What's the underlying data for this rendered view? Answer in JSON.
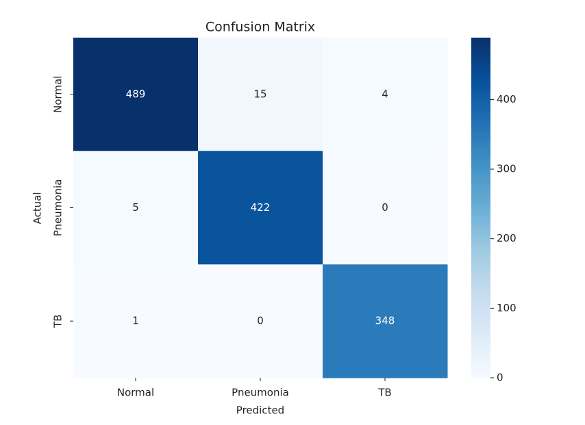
{
  "chart_data": {
    "type": "heatmap",
    "title": "Confusion Matrix",
    "xlabel": "Predicted",
    "ylabel": "Actual",
    "x_categories": [
      "Normal",
      "Pneumonia",
      "TB"
    ],
    "y_categories": [
      "Normal",
      "Pneumonia",
      "TB"
    ],
    "values": [
      [
        489,
        15,
        4
      ],
      [
        5,
        422,
        0
      ],
      [
        1,
        0,
        348
      ]
    ],
    "colormap": "Blues",
    "clim": [
      0,
      489
    ],
    "cticks": [
      0,
      100,
      200,
      300,
      400
    ]
  }
}
